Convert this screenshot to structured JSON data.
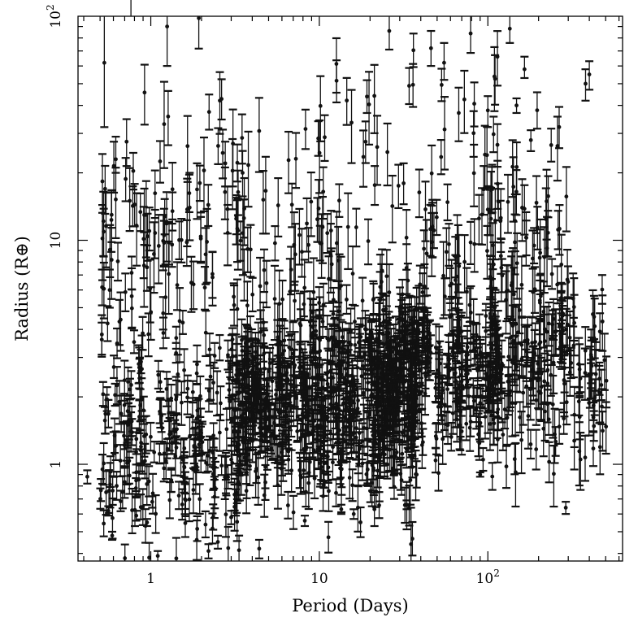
{
  "chart_data": {
    "type": "scatter",
    "title": "",
    "xlabel": "Period (Days)",
    "ylabel": "Radius (R⊕)",
    "xscale": "log",
    "yscale": "log",
    "xlim": [
      0.37,
      630
    ],
    "ylim": [
      0.37,
      100
    ],
    "xticks": [
      {
        "value": 1,
        "label": "1"
      },
      {
        "value": 10,
        "label": "10"
      },
      {
        "value": 100,
        "label": "10",
        "sup": "2"
      }
    ],
    "yticks": [
      {
        "value": 1,
        "label": "1"
      },
      {
        "value": 10,
        "label": "10"
      },
      {
        "value": 100,
        "label": "10",
        "sup": "2"
      }
    ],
    "grid": false,
    "legend": "none",
    "point_color": "#111111",
    "error_bar_color": "#111111",
    "outliers": [
      {
        "x": 0.42,
        "y": 0.88,
        "yerr": [
          0.06,
          0.06
        ]
      },
      {
        "x": 0.53,
        "y": 62,
        "yerr": [
          30,
          40
        ]
      },
      {
        "x": 0.56,
        "y": 0.62,
        "yerr": [
          0.03,
          0.03
        ]
      },
      {
        "x": 0.57,
        "y": 6.0,
        "yerr": [
          1.0,
          1.4
        ]
      },
      {
        "x": 0.59,
        "y": 0.48,
        "yerr": [
          0.02,
          0.02
        ]
      },
      {
        "x": 0.62,
        "y": 23,
        "yerr": [
          3,
          6
        ]
      },
      {
        "x": 0.75,
        "y": 15,
        "yerr": [
          4,
          6
        ]
      },
      {
        "x": 0.82,
        "y": 0.59,
        "yerr": [
          0.03,
          0.03
        ]
      },
      {
        "x": 0.95,
        "y": 0.55,
        "yerr": [
          0.02,
          0.02
        ]
      },
      {
        "x": 0.98,
        "y": 11,
        "yerr": [
          2,
          3
        ]
      },
      {
        "x": 1.02,
        "y": 0.68,
        "yerr": [
          0.04,
          0.04
        ]
      },
      {
        "x": 1.1,
        "y": 0.39,
        "yerr": [
          0.02,
          0.02
        ]
      },
      {
        "x": 1.2,
        "y": 33,
        "yerr": [
          12,
          18
        ]
      },
      {
        "x": 1.25,
        "y": 90,
        "yerr": [
          30,
          10
        ]
      },
      {
        "x": 1.7,
        "y": 14,
        "yerr": [
          4,
          6
        ]
      },
      {
        "x": 2.2,
        "y": 0.41,
        "yerr": [
          0.03,
          0.03
        ]
      },
      {
        "x": 2.5,
        "y": 0.45,
        "yerr": [
          0.03,
          0.03
        ]
      },
      {
        "x": 3.0,
        "y": 0.58,
        "yerr": [
          0.04,
          0.04
        ]
      },
      {
        "x": 4.4,
        "y": 0.42,
        "yerr": [
          0.04,
          0.04
        ]
      },
      {
        "x": 8.2,
        "y": 0.56,
        "yerr": [
          0.03,
          0.03
        ]
      },
      {
        "x": 13.5,
        "y": 0.63,
        "yerr": [
          0.03,
          0.03
        ]
      },
      {
        "x": 16,
        "y": 0.6,
        "yerr": [
          0.03,
          0.03
        ]
      },
      {
        "x": 26,
        "y": 86,
        "yerr": [
          15,
          14
        ]
      },
      {
        "x": 33,
        "y": 0.66,
        "yerr": [
          0.03,
          0.03
        ]
      },
      {
        "x": 35,
        "y": 0.44,
        "yerr": [
          0.07,
          0.2
        ]
      },
      {
        "x": 46,
        "y": 72,
        "yerr": [
          12,
          14
        ]
      },
      {
        "x": 55,
        "y": 62,
        "yerr": [
          10,
          14
        ]
      },
      {
        "x": 90,
        "y": 0.9,
        "yerr": [
          0.02,
          0.02
        ]
      },
      {
        "x": 100,
        "y": 38,
        "yerr": [
          6,
          6
        ]
      },
      {
        "x": 135,
        "y": 88,
        "yerr": [
          12,
          12
        ]
      },
      {
        "x": 148,
        "y": 40,
        "yerr": [
          3,
          3
        ]
      },
      {
        "x": 165,
        "y": 58,
        "yerr": [
          5,
          8
        ]
      },
      {
        "x": 180,
        "y": 28,
        "yerr": [
          3,
          3
        ]
      },
      {
        "x": 290,
        "y": 0.64,
        "yerr": [
          0.04,
          0.04
        ]
      },
      {
        "x": 380,
        "y": 50,
        "yerr": [
          8,
          8
        ]
      },
      {
        "x": 400,
        "y": 55,
        "yerr": [
          8,
          8
        ]
      }
    ],
    "clusters": [
      {
        "name": "",
        "x_range": [
          0.5,
          3.5
        ],
        "y_center": 1.3,
        "y_spread": 0.22,
        "count": 220,
        "err_frac": 0.18
      },
      {
        "name": "",
        "x_range": [
          3.0,
          40
        ],
        "y_center": 1.9,
        "y_spread": 0.22,
        "count": 650,
        "err_frac": 0.2
      },
      {
        "name": "",
        "x_range": [
          20,
          120
        ],
        "y_center": 2.5,
        "y_spread": 0.18,
        "count": 280,
        "err_frac": 0.2
      },
      {
        "name": "",
        "x_range": [
          100,
          320
        ],
        "y_center": 3.0,
        "y_spread": 0.2,
        "count": 130,
        "err_frac": 0.25
      },
      {
        "name": "",
        "x_range": [
          320,
          520
        ],
        "y_center": 2.2,
        "y_spread": 0.2,
        "count": 45,
        "err_frac": 0.25
      },
      {
        "name": "",
        "x_range": [
          0.5,
          120
        ],
        "y_center": 11,
        "y_spread": 0.35,
        "count": 260,
        "err_frac": 0.3
      },
      {
        "name": "",
        "x_range": [
          100,
          300
        ],
        "y_center": 9,
        "y_spread": 0.25,
        "count": 60,
        "err_frac": 0.3
      }
    ]
  }
}
